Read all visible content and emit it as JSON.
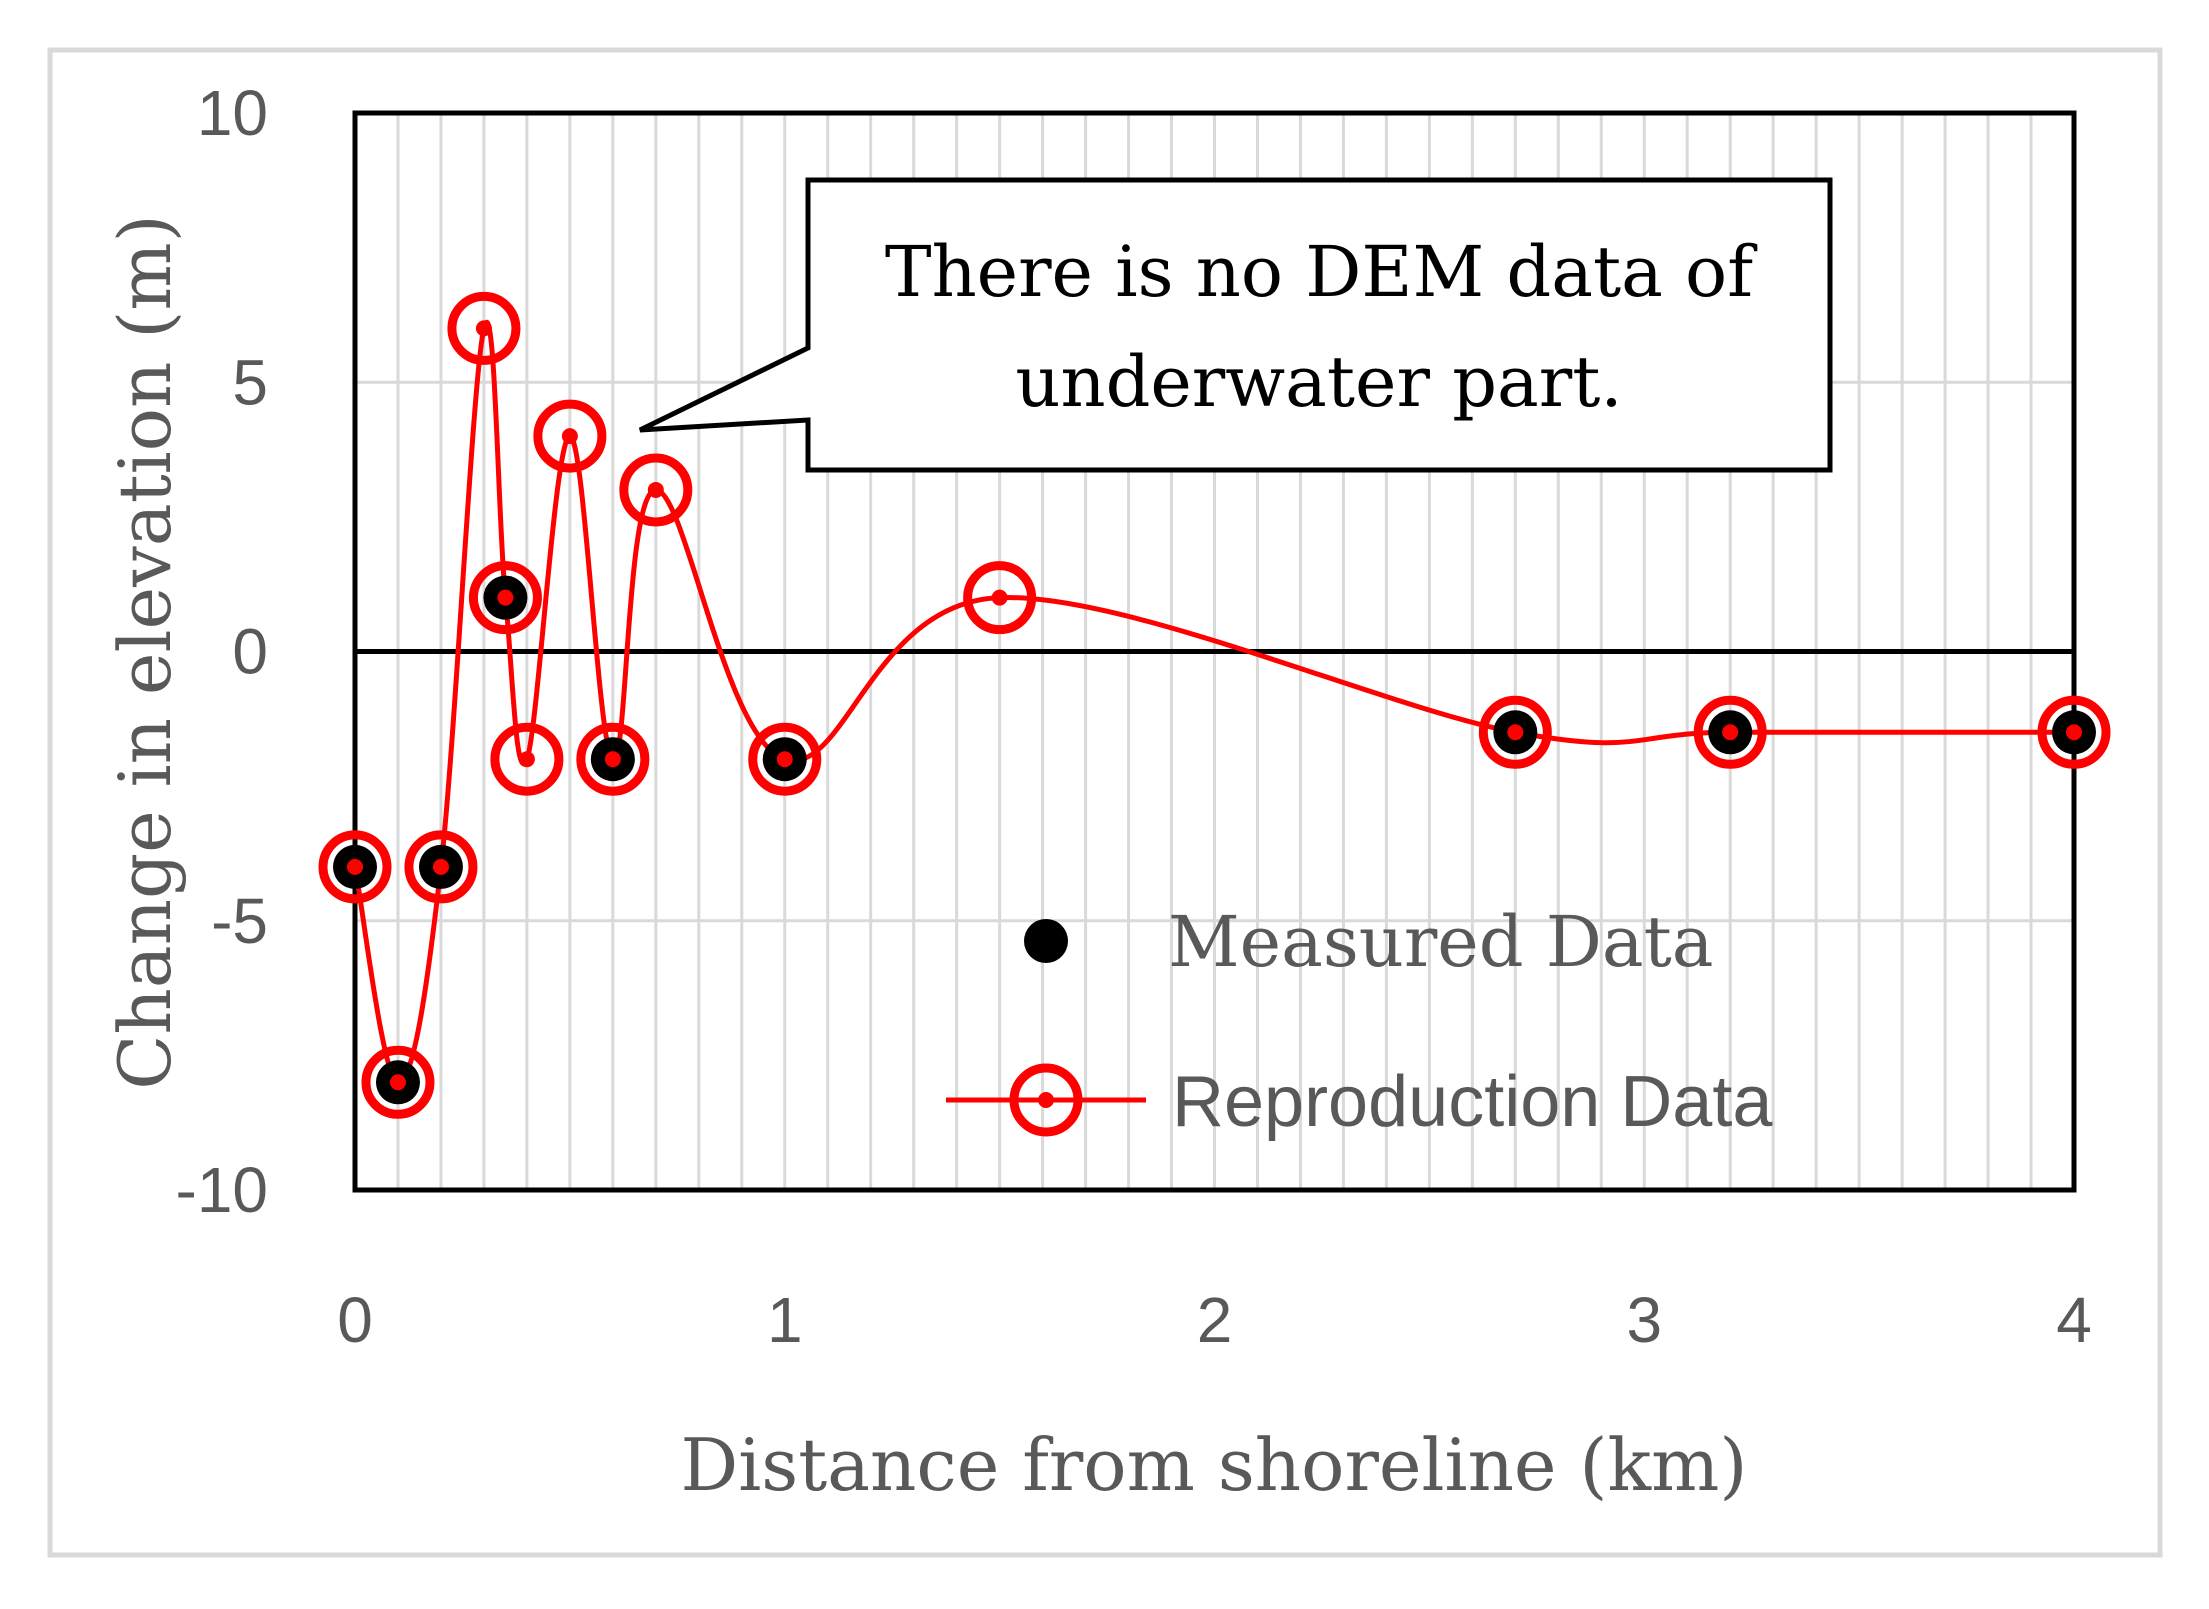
{
  "chart_data": {
    "type": "line",
    "title": "",
    "xlabel": "Distance from shoreline  (km)",
    "ylabel": "Change in elevation  (m)",
    "xlim": [
      0,
      4
    ],
    "ylim": [
      -10,
      10
    ],
    "xticks": [
      "0",
      "1",
      "2",
      "3",
      "4"
    ],
    "yticks": [
      "10",
      "5",
      "0",
      "-5",
      "-10"
    ],
    "grid": true,
    "legend_position": "bottom-right",
    "series": [
      {
        "name": "Measured Data",
        "style": "scatter",
        "color": "#000000",
        "x": [
          0,
          0.1,
          0.2,
          0.35,
          0.6,
          1.0,
          2.7,
          3.2,
          4.0
        ],
        "y": [
          -4,
          -8,
          -4,
          1,
          -2,
          -2,
          -1.5,
          -1.5,
          -1.5
        ]
      },
      {
        "name": "Reproduction Data",
        "style": "line-marker",
        "color": "#ff0000",
        "x": [
          0,
          0.1,
          0.2,
          0.3,
          0.35,
          0.4,
          0.5,
          0.6,
          0.7,
          1.0,
          1.5,
          2.7,
          3.2,
          4.0
        ],
        "y": [
          -4,
          -8,
          -4,
          6,
          1,
          -2,
          4,
          -2,
          3,
          -2,
          1,
          -1.5,
          -1.5,
          -1.5
        ]
      }
    ],
    "annotations": [
      {
        "text_lines": [
          "There is no DEM data of",
          "underwater part."
        ],
        "points_to": {
          "x": 0.65,
          "y": 4
        }
      }
    ]
  }
}
